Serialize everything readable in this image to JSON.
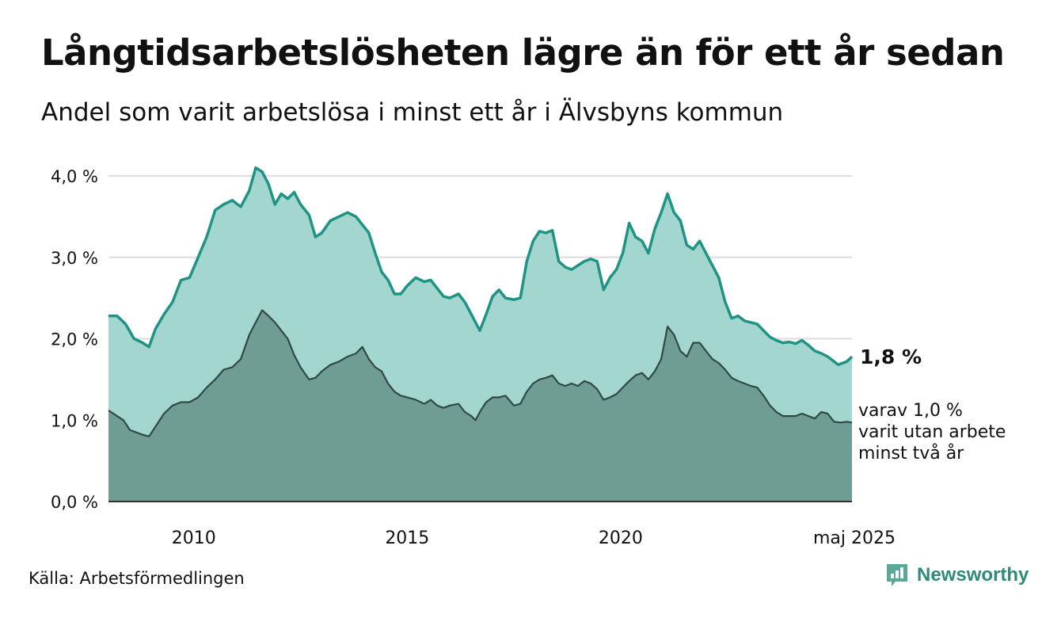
{
  "title": "Långtidsarbetslösheten lägre än för ett år sedan",
  "subtitle": "Andel som varit arbetslösa i minst ett år i Älvsbyns kommun",
  "source": "Källa: Arbetsförmedlingen",
  "brand": {
    "name": "Newsworthy",
    "logo_icon": "bar-chart-speech-icon"
  },
  "colors": {
    "total_line": "#1f9484",
    "total_fill": "#a3d6cf",
    "long_line": "#2f4a44",
    "long_fill": "#6f9d94",
    "grid": "#dddddd",
    "axis": "#333333"
  },
  "chart_data": {
    "type": "area",
    "xlim": [
      2008.0,
      2025.42
    ],
    "ylim": [
      0,
      4.0
    ],
    "y_ticks": [
      {
        "value": 0,
        "label": "0,0 %"
      },
      {
        "value": 1,
        "label": "1,0 %"
      },
      {
        "value": 2,
        "label": "2,0 %"
      },
      {
        "value": 3,
        "label": "3,0 %"
      },
      {
        "value": 4,
        "label": "4,0 %"
      }
    ],
    "x_ticks": [
      {
        "value": 2010,
        "label": "2010"
      },
      {
        "value": 2015,
        "label": "2015"
      },
      {
        "value": 2020,
        "label": "2020"
      },
      {
        "value": 2025.42,
        "label": "maj 2025"
      }
    ],
    "grid": true,
    "series": [
      {
        "key": "total",
        "points": [
          [
            2008.0,
            2.28
          ],
          [
            2008.2,
            2.28
          ],
          [
            2008.4,
            2.18
          ],
          [
            2008.6,
            2.0
          ],
          [
            2008.8,
            1.95
          ],
          [
            2008.95,
            1.9
          ],
          [
            2009.1,
            2.12
          ],
          [
            2009.3,
            2.3
          ],
          [
            2009.5,
            2.45
          ],
          [
            2009.7,
            2.72
          ],
          [
            2009.9,
            2.75
          ],
          [
            2010.1,
            3.0
          ],
          [
            2010.3,
            3.25
          ],
          [
            2010.5,
            3.58
          ],
          [
            2010.7,
            3.65
          ],
          [
            2010.9,
            3.7
          ],
          [
            2011.1,
            3.62
          ],
          [
            2011.3,
            3.82
          ],
          [
            2011.45,
            4.1
          ],
          [
            2011.6,
            4.05
          ],
          [
            2011.75,
            3.9
          ],
          [
            2011.9,
            3.65
          ],
          [
            2012.05,
            3.78
          ],
          [
            2012.2,
            3.72
          ],
          [
            2012.35,
            3.8
          ],
          [
            2012.5,
            3.65
          ],
          [
            2012.7,
            3.52
          ],
          [
            2012.85,
            3.25
          ],
          [
            2013.0,
            3.3
          ],
          [
            2013.2,
            3.45
          ],
          [
            2013.4,
            3.5
          ],
          [
            2013.6,
            3.55
          ],
          [
            2013.8,
            3.5
          ],
          [
            2013.95,
            3.4
          ],
          [
            2014.1,
            3.3
          ],
          [
            2014.25,
            3.05
          ],
          [
            2014.4,
            2.82
          ],
          [
            2014.55,
            2.72
          ],
          [
            2014.7,
            2.55
          ],
          [
            2014.85,
            2.55
          ],
          [
            2015.0,
            2.65
          ],
          [
            2015.2,
            2.75
          ],
          [
            2015.4,
            2.7
          ],
          [
            2015.55,
            2.72
          ],
          [
            2015.7,
            2.62
          ],
          [
            2015.85,
            2.52
          ],
          [
            2016.0,
            2.5
          ],
          [
            2016.2,
            2.55
          ],
          [
            2016.35,
            2.45
          ],
          [
            2016.5,
            2.3
          ],
          [
            2016.6,
            2.2
          ],
          [
            2016.7,
            2.1
          ],
          [
            2016.85,
            2.3
          ],
          [
            2017.0,
            2.52
          ],
          [
            2017.15,
            2.6
          ],
          [
            2017.3,
            2.5
          ],
          [
            2017.5,
            2.48
          ],
          [
            2017.65,
            2.5
          ],
          [
            2017.8,
            2.95
          ],
          [
            2017.95,
            3.2
          ],
          [
            2018.1,
            3.32
          ],
          [
            2018.25,
            3.3
          ],
          [
            2018.4,
            3.33
          ],
          [
            2018.55,
            2.95
          ],
          [
            2018.7,
            2.88
          ],
          [
            2018.85,
            2.85
          ],
          [
            2019.0,
            2.9
          ],
          [
            2019.15,
            2.95
          ],
          [
            2019.3,
            2.98
          ],
          [
            2019.45,
            2.95
          ],
          [
            2019.6,
            2.6
          ],
          [
            2019.75,
            2.75
          ],
          [
            2019.9,
            2.85
          ],
          [
            2020.05,
            3.05
          ],
          [
            2020.2,
            3.42
          ],
          [
            2020.35,
            3.25
          ],
          [
            2020.5,
            3.2
          ],
          [
            2020.65,
            3.05
          ],
          [
            2020.8,
            3.35
          ],
          [
            2020.95,
            3.55
          ],
          [
            2021.1,
            3.78
          ],
          [
            2021.25,
            3.55
          ],
          [
            2021.4,
            3.45
          ],
          [
            2021.55,
            3.15
          ],
          [
            2021.7,
            3.1
          ],
          [
            2021.85,
            3.2
          ],
          [
            2022.0,
            3.05
          ],
          [
            2022.15,
            2.9
          ],
          [
            2022.3,
            2.75
          ],
          [
            2022.45,
            2.45
          ],
          [
            2022.6,
            2.25
          ],
          [
            2022.75,
            2.28
          ],
          [
            2022.9,
            2.22
          ],
          [
            2023.05,
            2.2
          ],
          [
            2023.2,
            2.18
          ],
          [
            2023.35,
            2.1
          ],
          [
            2023.5,
            2.02
          ],
          [
            2023.65,
            1.98
          ],
          [
            2023.8,
            1.95
          ],
          [
            2023.95,
            1.96
          ],
          [
            2024.1,
            1.94
          ],
          [
            2024.25,
            1.98
          ],
          [
            2024.4,
            1.92
          ],
          [
            2024.55,
            1.85
          ],
          [
            2024.7,
            1.82
          ],
          [
            2024.85,
            1.78
          ],
          [
            2025.0,
            1.72
          ],
          [
            2025.1,
            1.68
          ],
          [
            2025.2,
            1.7
          ],
          [
            2025.3,
            1.72
          ],
          [
            2025.42,
            1.78
          ]
        ]
      },
      {
        "key": "long",
        "points": [
          [
            2008.0,
            1.12
          ],
          [
            2008.2,
            1.05
          ],
          [
            2008.35,
            1.0
          ],
          [
            2008.5,
            0.88
          ],
          [
            2008.65,
            0.85
          ],
          [
            2008.8,
            0.82
          ],
          [
            2008.95,
            0.8
          ],
          [
            2009.1,
            0.92
          ],
          [
            2009.3,
            1.08
          ],
          [
            2009.5,
            1.18
          ],
          [
            2009.7,
            1.22
          ],
          [
            2009.9,
            1.22
          ],
          [
            2010.1,
            1.28
          ],
          [
            2010.3,
            1.4
          ],
          [
            2010.5,
            1.5
          ],
          [
            2010.7,
            1.62
          ],
          [
            2010.9,
            1.65
          ],
          [
            2011.1,
            1.75
          ],
          [
            2011.3,
            2.05
          ],
          [
            2011.45,
            2.2
          ],
          [
            2011.6,
            2.35
          ],
          [
            2011.75,
            2.28
          ],
          [
            2011.9,
            2.2
          ],
          [
            2012.05,
            2.1
          ],
          [
            2012.2,
            2.0
          ],
          [
            2012.35,
            1.8
          ],
          [
            2012.5,
            1.65
          ],
          [
            2012.7,
            1.5
          ],
          [
            2012.85,
            1.52
          ],
          [
            2013.0,
            1.6
          ],
          [
            2013.2,
            1.68
          ],
          [
            2013.4,
            1.72
          ],
          [
            2013.6,
            1.78
          ],
          [
            2013.8,
            1.82
          ],
          [
            2013.95,
            1.9
          ],
          [
            2014.1,
            1.75
          ],
          [
            2014.25,
            1.65
          ],
          [
            2014.4,
            1.6
          ],
          [
            2014.55,
            1.45
          ],
          [
            2014.7,
            1.35
          ],
          [
            2014.85,
            1.3
          ],
          [
            2015.0,
            1.28
          ],
          [
            2015.2,
            1.25
          ],
          [
            2015.4,
            1.2
          ],
          [
            2015.55,
            1.25
          ],
          [
            2015.7,
            1.18
          ],
          [
            2015.85,
            1.15
          ],
          [
            2016.0,
            1.18
          ],
          [
            2016.2,
            1.2
          ],
          [
            2016.35,
            1.1
          ],
          [
            2016.5,
            1.05
          ],
          [
            2016.6,
            1.0
          ],
          [
            2016.7,
            1.1
          ],
          [
            2016.85,
            1.22
          ],
          [
            2017.0,
            1.28
          ],
          [
            2017.15,
            1.28
          ],
          [
            2017.3,
            1.3
          ],
          [
            2017.5,
            1.18
          ],
          [
            2017.65,
            1.2
          ],
          [
            2017.8,
            1.35
          ],
          [
            2017.95,
            1.45
          ],
          [
            2018.1,
            1.5
          ],
          [
            2018.25,
            1.52
          ],
          [
            2018.4,
            1.55
          ],
          [
            2018.55,
            1.45
          ],
          [
            2018.7,
            1.42
          ],
          [
            2018.85,
            1.45
          ],
          [
            2019.0,
            1.42
          ],
          [
            2019.15,
            1.48
          ],
          [
            2019.3,
            1.45
          ],
          [
            2019.45,
            1.38
          ],
          [
            2019.6,
            1.25
          ],
          [
            2019.75,
            1.28
          ],
          [
            2019.9,
            1.32
          ],
          [
            2020.05,
            1.4
          ],
          [
            2020.2,
            1.48
          ],
          [
            2020.35,
            1.55
          ],
          [
            2020.5,
            1.58
          ],
          [
            2020.65,
            1.5
          ],
          [
            2020.8,
            1.6
          ],
          [
            2020.95,
            1.75
          ],
          [
            2021.1,
            2.15
          ],
          [
            2021.25,
            2.05
          ],
          [
            2021.4,
            1.85
          ],
          [
            2021.55,
            1.78
          ],
          [
            2021.7,
            1.95
          ],
          [
            2021.85,
            1.95
          ],
          [
            2022.0,
            1.85
          ],
          [
            2022.15,
            1.75
          ],
          [
            2022.3,
            1.7
          ],
          [
            2022.45,
            1.62
          ],
          [
            2022.6,
            1.52
          ],
          [
            2022.75,
            1.48
          ],
          [
            2022.9,
            1.45
          ],
          [
            2023.05,
            1.42
          ],
          [
            2023.2,
            1.4
          ],
          [
            2023.35,
            1.3
          ],
          [
            2023.5,
            1.18
          ],
          [
            2023.65,
            1.1
          ],
          [
            2023.8,
            1.05
          ],
          [
            2023.95,
            1.05
          ],
          [
            2024.1,
            1.05
          ],
          [
            2024.25,
            1.08
          ],
          [
            2024.4,
            1.05
          ],
          [
            2024.55,
            1.02
          ],
          [
            2024.7,
            1.1
          ],
          [
            2024.85,
            1.08
          ],
          [
            2025.0,
            0.98
          ],
          [
            2025.15,
            0.97
          ],
          [
            2025.3,
            0.98
          ],
          [
            2025.42,
            0.97
          ]
        ]
      }
    ],
    "end_label_total": "1,8 %",
    "end_label_long_lines": [
      "varav 1,0 %",
      "varit utan arbete",
      "minst två år"
    ]
  }
}
